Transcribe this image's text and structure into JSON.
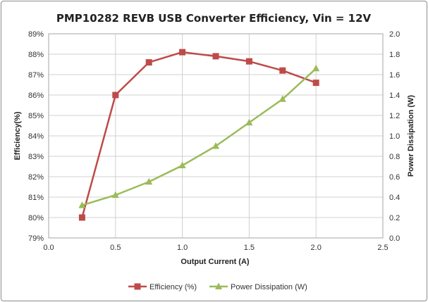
{
  "chart_data": {
    "type": "line",
    "title": "PMP10282 REVB USB Converter Efficiency, Vin = 12V",
    "xlabel": "Output Current (A)",
    "ylabel": "Efficiency(%)",
    "y2label": "Power Dissipation (W)",
    "xlim": [
      0.0,
      2.5
    ],
    "ylim": [
      79,
      89
    ],
    "y2lim": [
      0.0,
      2.0
    ],
    "x_ticks": [
      "0.0",
      "0.5",
      "1.0",
      "1.5",
      "2.0",
      "2.5"
    ],
    "y_ticks": [
      "79%",
      "80%",
      "81%",
      "82%",
      "83%",
      "84%",
      "85%",
      "86%",
      "87%",
      "88%",
      "89%"
    ],
    "y2_ticks": [
      "0.0",
      "0.2",
      "0.4",
      "0.6",
      "0.8",
      "1.0",
      "1.2",
      "1.4",
      "1.6",
      "1.8",
      "2.0"
    ],
    "grid": true,
    "legend_position": "bottom",
    "series": [
      {
        "name": "Efficiency (%)",
        "axis": "left",
        "color": "#be4b48",
        "marker": "square",
        "x": [
          0.25,
          0.5,
          0.75,
          1.0,
          1.25,
          1.5,
          1.75,
          2.0
        ],
        "values": [
          80.0,
          86.0,
          87.6,
          88.1,
          87.9,
          87.65,
          87.2,
          86.6
        ]
      },
      {
        "name": "Power Dissipation (W)",
        "axis": "right",
        "color": "#9bbb59",
        "marker": "triangle",
        "x": [
          0.25,
          0.5,
          0.75,
          1.0,
          1.25,
          1.5,
          1.75,
          2.0
        ],
        "values": [
          0.32,
          0.42,
          0.55,
          0.71,
          0.9,
          1.13,
          1.36,
          1.66
        ]
      }
    ]
  }
}
